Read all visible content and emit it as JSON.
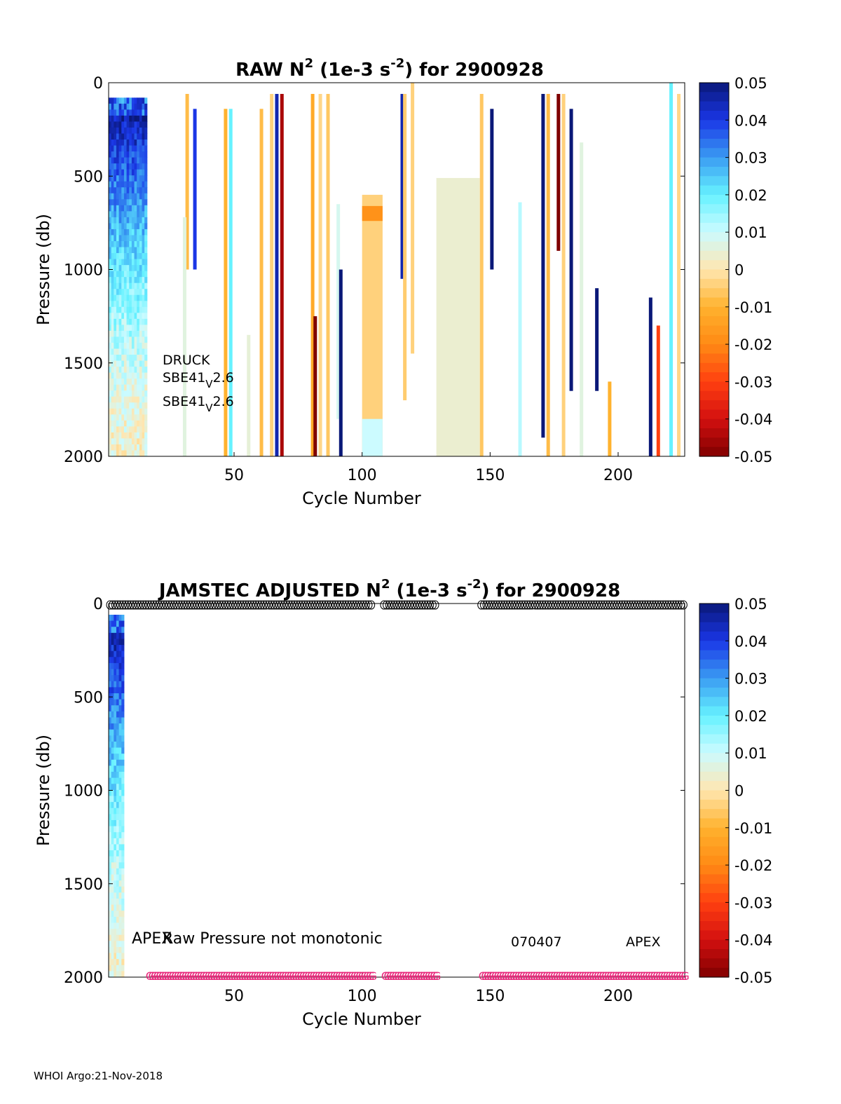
{
  "footer": "WHOI Argo:21-Nov-2018",
  "colorbar": {
    "ticks": [
      "0.05",
      "0.04",
      "0.03",
      "0.02",
      "0.01",
      "0",
      "-0.01",
      "-0.02",
      "-0.03",
      "-0.04",
      "-0.05"
    ],
    "colormap": [
      "#7f0000",
      "#d41010",
      "#ff4010",
      "#ff8a14",
      "#ffb22e",
      "#ffe6b0",
      "#ccfbff",
      "#66f2ff",
      "#3a9cf2",
      "#1a36e6",
      "#0a1878"
    ]
  },
  "chart_data": [
    {
      "type": "heatmap",
      "title_main": "RAW N",
      "title_sup": "2",
      "title_mid": " (1e-3 s",
      "title_sup2": "-2",
      "title_end": ") for 2900928",
      "xlabel": "Cycle Number",
      "ylabel": "Pressure (db)",
      "xlim": [
        1,
        226
      ],
      "ylim": [
        0,
        2000
      ],
      "xticks": [
        50,
        100,
        150,
        200
      ],
      "yticks": [
        0,
        500,
        1000,
        1500,
        2000
      ],
      "zlim": [
        -0.05,
        0.05
      ],
      "annotations": {
        "sensor_1": "DRUCK",
        "sensor_2": "SBE41",
        "sensor_2_sub": "V",
        "sensor_2_ver": "2.6",
        "sensor_3": "SBE41",
        "sensor_3_sub": "V",
        "sensor_3_ver": "2.6"
      },
      "dense_region": {
        "cycles": [
          1,
          16
        ],
        "pressure": [
          80,
          2000
        ]
      },
      "profiles": [
        {
          "cycle": 31,
          "p": [
            60,
            1000
          ],
          "value": -0.008
        },
        {
          "cycle": 34,
          "p": [
            140,
            1000
          ],
          "value": 0.04
        },
        {
          "cycle": 30,
          "p": [
            720,
            2000
          ],
          "value": 0.006
        },
        {
          "cycle": 46,
          "p": [
            140,
            2000
          ],
          "value": -0.01
        },
        {
          "cycle": 48,
          "p": [
            140,
            2000
          ],
          "value": 0.02
        },
        {
          "cycle": 55,
          "p": [
            1350,
            2000
          ],
          "value": 0.005
        },
        {
          "cycle": 60,
          "p": [
            140,
            2000
          ],
          "value": -0.008
        },
        {
          "cycle": 64,
          "p": [
            60,
            2000
          ],
          "value": -0.004
        },
        {
          "cycle": 66,
          "p": [
            60,
            2000
          ],
          "value": 0.045
        },
        {
          "cycle": 68,
          "p": [
            60,
            2000
          ],
          "value": -0.045
        },
        {
          "cycle": 80,
          "p": [
            60,
            2000
          ],
          "value": -0.012
        },
        {
          "cycle": 81,
          "p": [
            1250,
            2000
          ],
          "value": -0.05
        },
        {
          "cycle": 83,
          "p": [
            60,
            2000
          ],
          "value": -0.003
        },
        {
          "cycle": 86,
          "p": [
            60,
            2000
          ],
          "value": -0.006
        },
        {
          "cycle": 90,
          "p": [
            650,
            1800
          ],
          "value": 0.008
        },
        {
          "cycle": 91,
          "p": [
            1000,
            2000
          ],
          "value": 0.05
        },
        {
          "cycle": 100,
          "p": [
            600,
            2000
          ],
          "value": -0.004
        },
        {
          "cycle": 100,
          "p": [
            660,
            740
          ],
          "value": -0.018
        },
        {
          "cycle": 100,
          "p": [
            1800,
            2000
          ],
          "value": 0.01
        },
        {
          "cycle": 115,
          "p": [
            60,
            1050
          ],
          "value": 0.045
        },
        {
          "cycle": 116,
          "p": [
            60,
            1700
          ],
          "value": -0.005
        },
        {
          "cycle": 119,
          "p": [
            0,
            1450
          ],
          "value": -0.004
        },
        {
          "cycle": 129,
          "p": [
            510,
            2000
          ],
          "value": 0.004
        },
        {
          "cycle": 146,
          "p": [
            60,
            2000
          ],
          "value": -0.006
        },
        {
          "cycle": 150,
          "p": [
            140,
            1000
          ],
          "value": 0.05
        },
        {
          "cycle": 161,
          "p": [
            640,
            2000
          ],
          "value": 0.012
        },
        {
          "cycle": 170,
          "p": [
            60,
            1900
          ],
          "value": 0.05
        },
        {
          "cycle": 172,
          "p": [
            60,
            2000
          ],
          "value": -0.008
        },
        {
          "cycle": 176,
          "p": [
            60,
            900
          ],
          "value": -0.05
        },
        {
          "cycle": 178,
          "p": [
            60,
            2000
          ],
          "value": -0.004
        },
        {
          "cycle": 181,
          "p": [
            140,
            1650
          ],
          "value": 0.05
        },
        {
          "cycle": 185,
          "p": [
            320,
            2000
          ],
          "value": 0.006
        },
        {
          "cycle": 191,
          "p": [
            1100,
            1650
          ],
          "value": 0.05
        },
        {
          "cycle": 196,
          "p": [
            1600,
            2000
          ],
          "value": -0.01
        },
        {
          "cycle": 212,
          "p": [
            1150,
            2000
          ],
          "value": 0.05
        },
        {
          "cycle": 215,
          "p": [
            1300,
            2000
          ],
          "value": -0.03
        },
        {
          "cycle": 220,
          "p": [
            0,
            2000
          ],
          "value": 0.02
        },
        {
          "cycle": 223,
          "p": [
            60,
            2000
          ],
          "value": -0.003
        }
      ]
    },
    {
      "type": "heatmap",
      "title_main": "JAMSTEC  ADJUSTED N",
      "title_sup": "2",
      "title_mid": " (1e-3 s",
      "title_sup2": "-2",
      "title_end": ") for 2900928",
      "xlabel": "Cycle Number",
      "ylabel": "Pressure (db)",
      "xlim": [
        1,
        226
      ],
      "ylim": [
        0,
        2000
      ],
      "xticks": [
        50,
        100,
        150,
        200
      ],
      "yticks": [
        0,
        500,
        1000,
        1500,
        2000
      ],
      "zlim": [
        -0.05,
        0.05
      ],
      "annotations": {
        "apex_left": "APEX",
        "warning": "Raw Pressure not monotonic",
        "serial": "070407",
        "apex_right": "APEX"
      },
      "dense_region": {
        "cycles": [
          1,
          7
        ],
        "pressure": [
          60,
          2000
        ]
      },
      "top_marker_symbol": "O",
      "bottom_marker_symbol": "G",
      "top_marker_cycles": [
        [
          1,
          103
        ],
        [
          108,
          128
        ],
        [
          146,
          225
        ]
      ],
      "bottom_marker_cycles": [
        [
          16,
          103
        ],
        [
          108,
          128
        ],
        [
          146,
          225
        ]
      ]
    }
  ]
}
